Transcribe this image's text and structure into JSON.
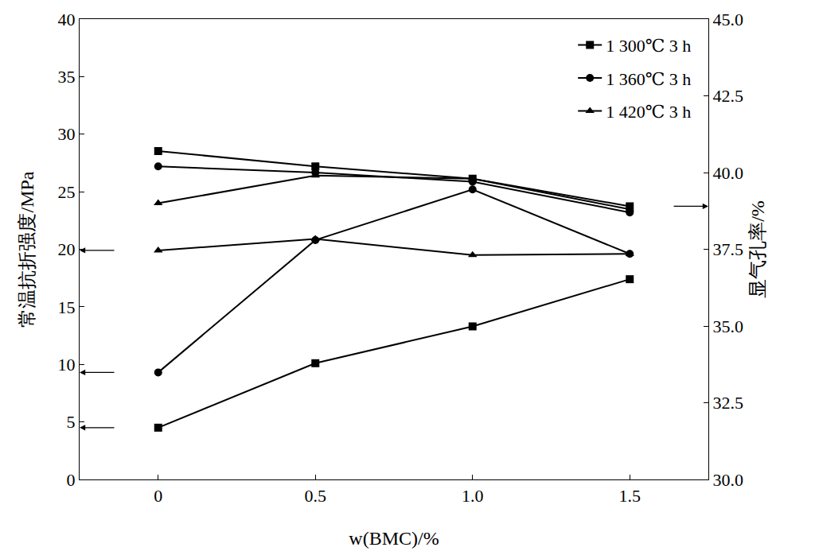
{
  "chart_data": {
    "type": "line",
    "x_label": "w(BMC)/%",
    "y_label": "常温抗折强度/MPa",
    "y2_label": "显气孔率/%",
    "x": [
      0,
      0.5,
      1.0,
      1.5
    ],
    "xlim": [
      -0.25,
      1.75
    ],
    "xticks": [
      0,
      0.5,
      {
        "value": 1.0,
        "label": "1.0"
      },
      1.5
    ],
    "ylim": [
      0,
      40
    ],
    "yticks": [
      0,
      5,
      10,
      15,
      20,
      25,
      30,
      35,
      40
    ],
    "y2lim": [
      30,
      45
    ],
    "y2ticks": [
      {
        "value": 30,
        "label": "30.0"
      },
      32.5,
      {
        "value": 35,
        "label": "35.0"
      },
      37.5,
      {
        "value": 40,
        "label": "40.0"
      },
      42.5,
      {
        "value": 45,
        "label": "45.0"
      }
    ],
    "grid": false,
    "legend": "top right",
    "series": [
      {
        "name": "1 300℃ 3 h",
        "color": "#000000",
        "marker": "square",
        "line_style": "solid",
        "values": [
          4.5,
          10.1,
          13.3,
          17.4
        ]
      },
      {
        "name": "1 360℃ 3 h",
        "color": "#000000",
        "marker": "circle",
        "line_style": "solid",
        "values": [
          9.3,
          20.8,
          25.2,
          19.6
        ]
      },
      {
        "name": "1 420℃ 3 h",
        "color": "#000000",
        "marker": "triangle-up",
        "line_style": "solid",
        "values": [
          19.9,
          20.9,
          19.5,
          19.6
        ]
      },
      {
        "name": "1 300℃ 3 h",
        "color": "#000000",
        "marker": "square",
        "line_style": "solid",
        "axis": "y2",
        "values": [
          40.7,
          40.2,
          39.8,
          38.9
        ]
      },
      {
        "name": "1 360℃ 3 h",
        "color": "#000000",
        "marker": "circle",
        "line_style": "solid",
        "axis": "y2",
        "values": [
          40.2,
          40.0,
          39.7,
          38.7
        ]
      },
      {
        "name": "1 420℃ 3 h",
        "color": "#000000",
        "marker": "triangle-up",
        "line_style": "solid",
        "axis": "y2",
        "values": [
          39.0,
          39.9,
          39.8,
          38.8
        ]
      }
    ]
  }
}
